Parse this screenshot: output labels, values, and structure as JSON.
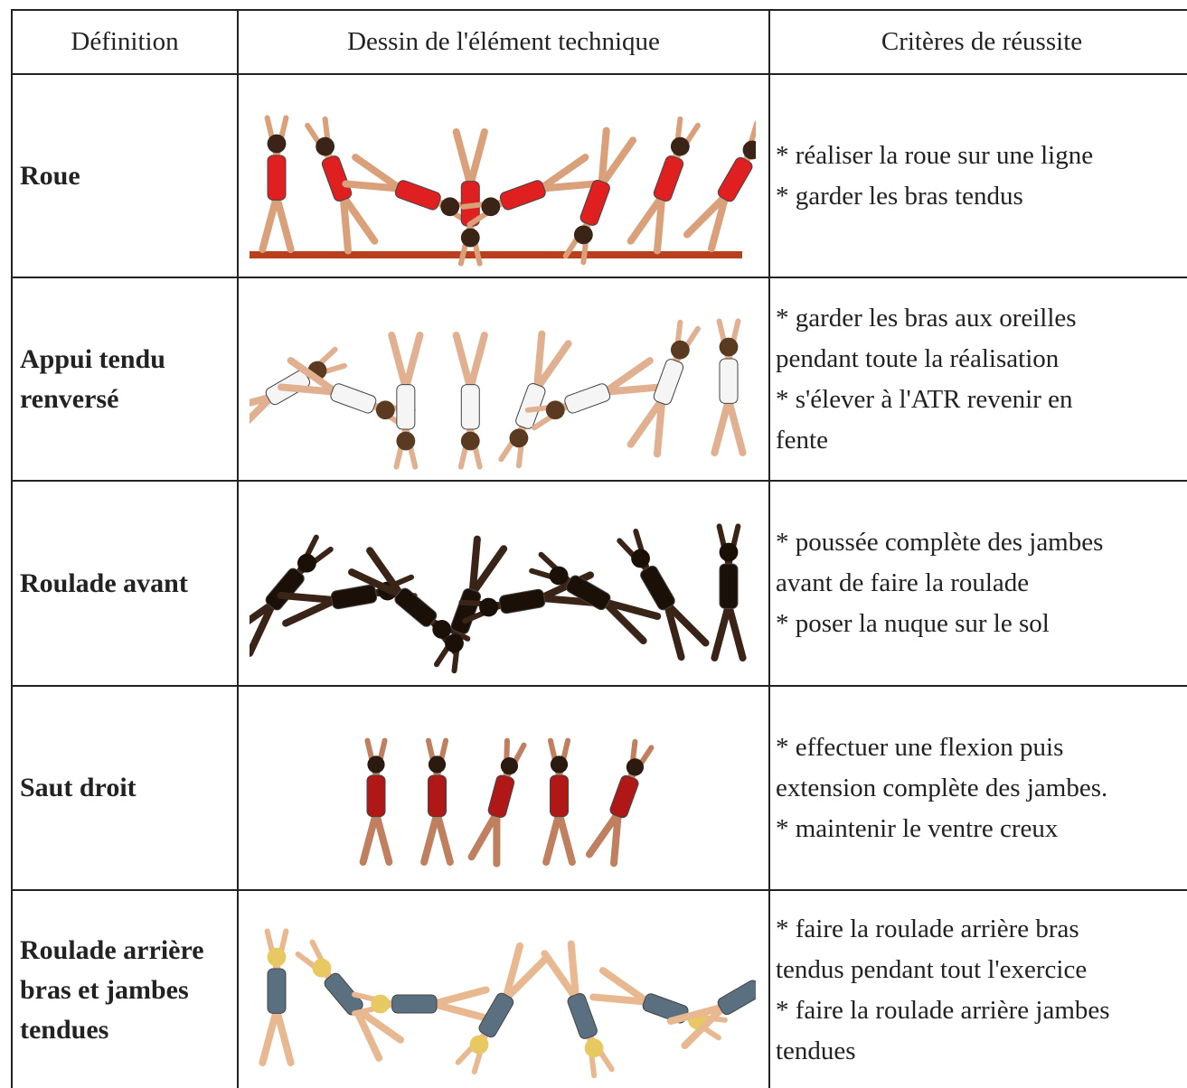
{
  "table": {
    "header": [
      "Définition",
      "Dessin de l'élément  technique",
      "Critères de réussite"
    ],
    "rows": [
      {
        "definition": [
          "Roue"
        ],
        "criteria": [
          "* réaliser la roue sur une ligne",
          "* garder les bras tendus"
        ]
      },
      {
        "definition": [
          "Appui tendu",
          "renversé"
        ],
        "criteria": [
          "* garder les bras aux oreilles",
          "pendant toute la réalisation",
          "* s'élever à l'ATR revenir en",
          "fente"
        ]
      },
      {
        "definition": [
          "Roulade avant"
        ],
        "criteria": [
          "* poussée complète des jambes",
          "avant de faire la roulade",
          "* poser la nuque sur le sol"
        ]
      },
      {
        "definition": [
          "Saut droit"
        ],
        "criteria": [
          "* effectuer une flexion puis",
          "extension complète des jambes.",
          "* maintenir le ventre creux"
        ]
      },
      {
        "definition": [
          "Roulade arrière",
          "bras et jambes",
          "tendues"
        ],
        "criteria": [
          "* faire la roulade arrière bras",
          "tendus pendant tout l'exercice",
          "* faire la roulade arrière jambes",
          "tendues"
        ]
      }
    ]
  }
}
